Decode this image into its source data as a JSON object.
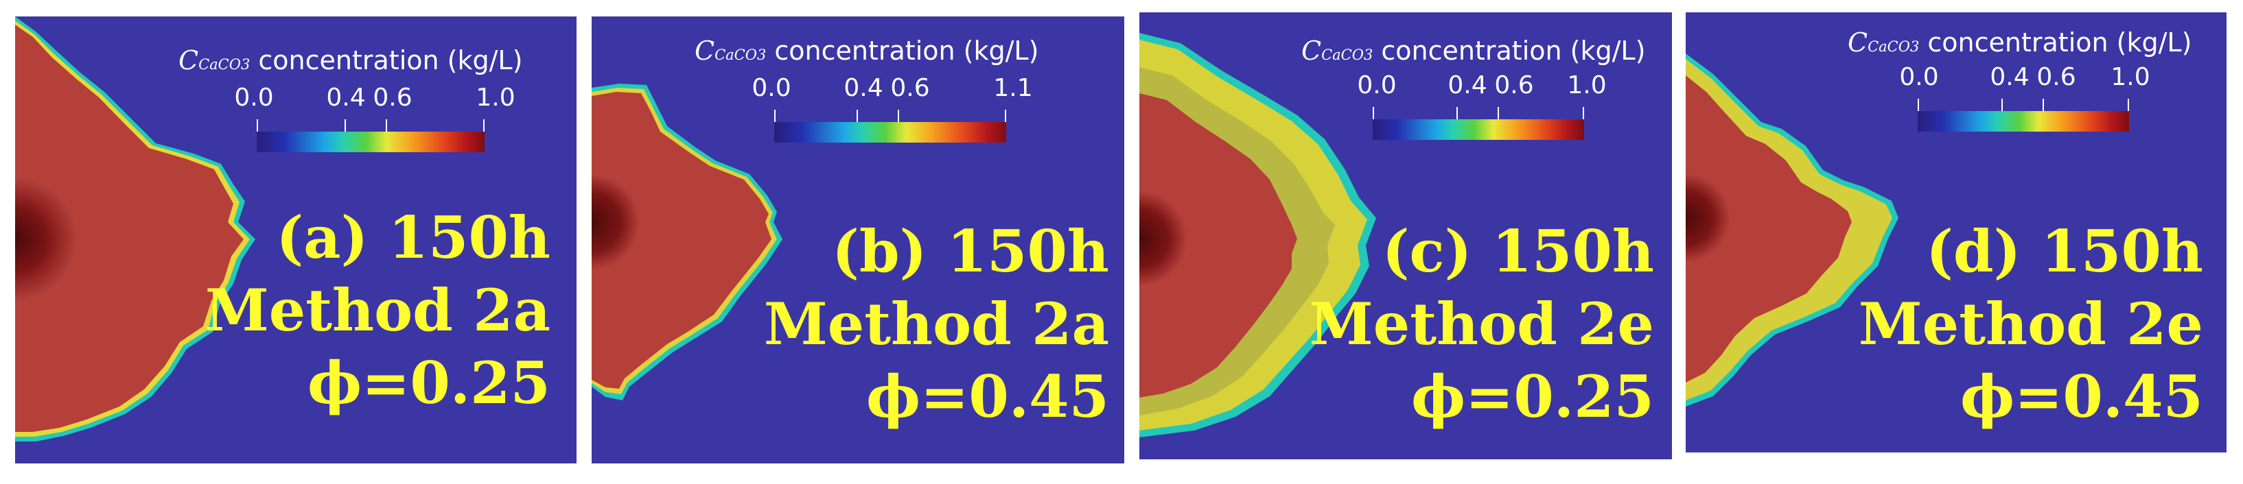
{
  "colorbar": {
    "title_prefix": "C",
    "title_subscript": "CaCO3",
    "title_suffix": "concentration (kg/L)",
    "scale": [
      "#2a1e7a",
      "#2430b0",
      "#1ea6e6",
      "#28d0b0",
      "#5ad040",
      "#e8e83a",
      "#f6a11e",
      "#e3461d",
      "#b2161b",
      "#7c0e14"
    ]
  },
  "panels": [
    {
      "title": "(a) 150h",
      "method": "Method 2a",
      "phi": "ϕ=0.25",
      "ticks": [
        "0.0",
        "0.4",
        "0.6",
        "1.0"
      ]
    },
    {
      "title": "(b) 150h",
      "method": "Method 2a",
      "phi": "ϕ=0.45",
      "ticks": [
        "0.0",
        "0.4",
        "0.6",
        "1.1"
      ]
    },
    {
      "title": "(c) 150h",
      "method": "Method 2e",
      "phi": "ϕ=0.25",
      "ticks": [
        "0.0",
        "0.4",
        "0.6",
        "1.0"
      ]
    },
    {
      "title": "(d) 150h",
      "method": "Method 2e",
      "phi": "ϕ=0.45",
      "ticks": [
        "0.0",
        "0.4",
        "0.6",
        "1.0"
      ]
    }
  ],
  "colors": {
    "background": "#3b36a4",
    "precipitate": "#b5403a",
    "caption": "#ffff30"
  }
}
